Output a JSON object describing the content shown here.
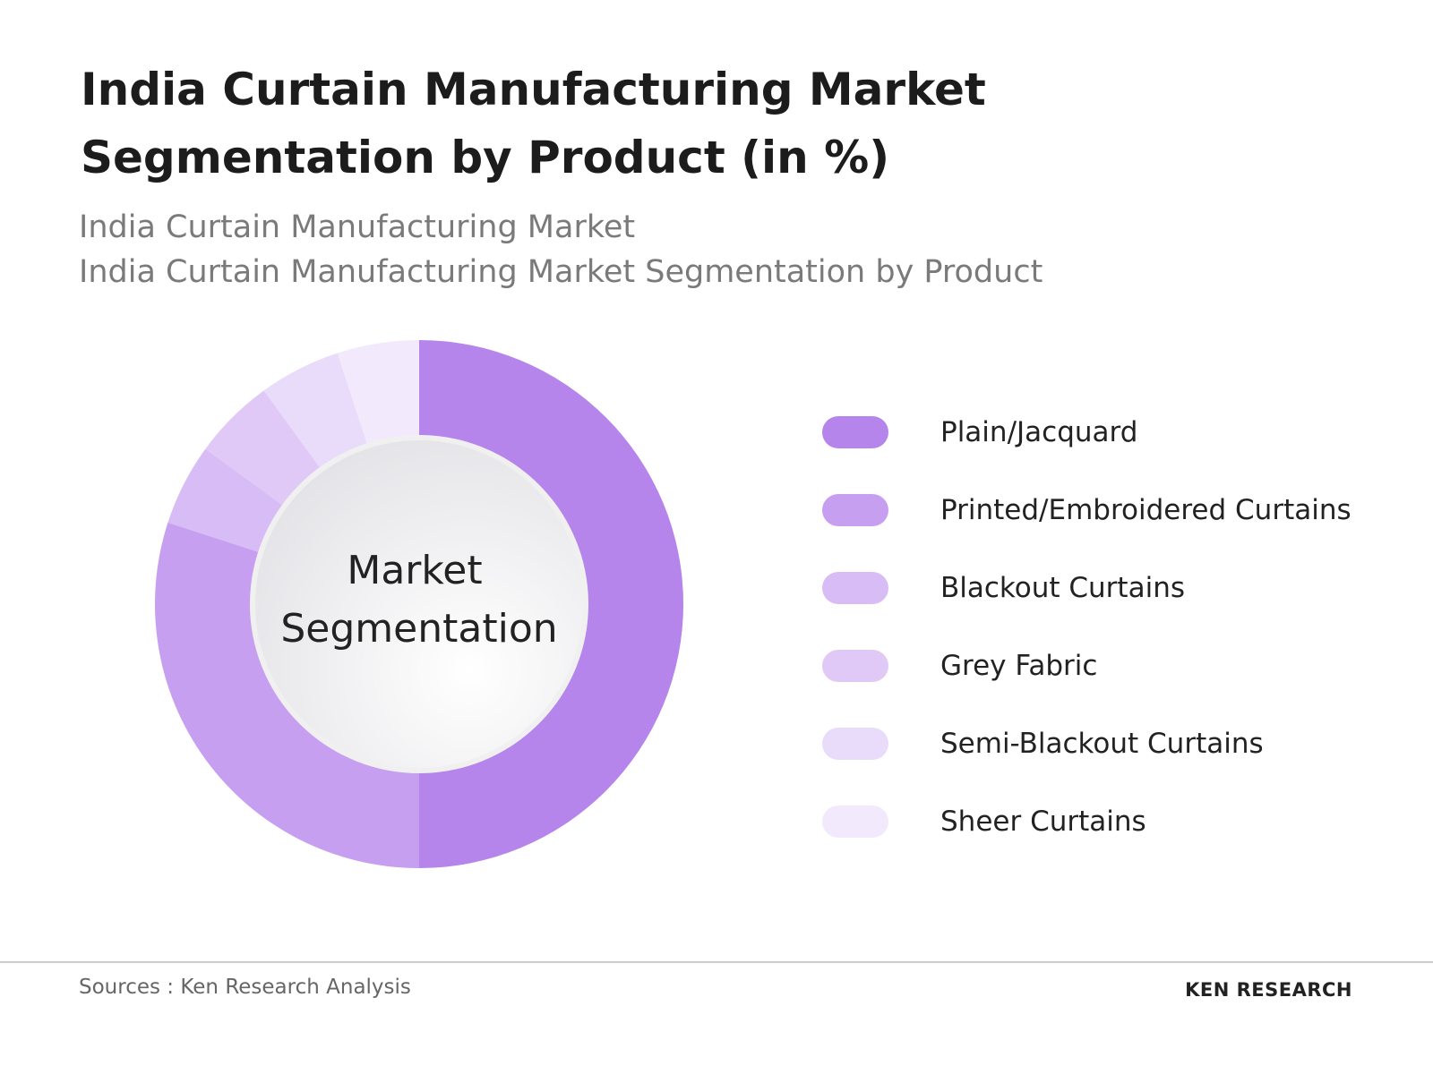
{
  "chart_data": {
    "type": "donut",
    "title": "India Curtain Manufacturing Market Segmentation by Product (in %)",
    "subtitle": [
      "India Curtain Manufacturing Market",
      "India Curtain Manufacturing Market Segmentation by Product"
    ],
    "center_label": [
      "Market",
      "Segmentation"
    ],
    "categories": [
      "Plain/Jacquard",
      "Printed/Embroidered Curtains",
      "Blackout Curtains",
      "Grey Fabric",
      "Semi-Blackout Curtains",
      "Sheer Curtains"
    ],
    "values": [
      50,
      30,
      5,
      5,
      5,
      5
    ],
    "colors": [
      "#b585ec",
      "#c79ff0",
      "#d8bcf5",
      "#e0c9f7",
      "#e9dbfa",
      "#f2eafc"
    ],
    "legend": "right"
  },
  "footer": {
    "source": "Sources : Ken Research Analysis",
    "logo": "KEN RESEARCH"
  }
}
